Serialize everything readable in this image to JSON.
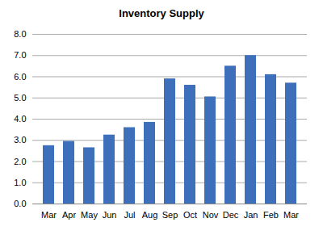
{
  "chart_data": {
    "type": "bar",
    "title": "Inventory Supply",
    "categories": [
      "Mar",
      "Apr",
      "May",
      "Jun",
      "Jul",
      "Aug",
      "Sep",
      "Oct",
      "Nov",
      "Dec",
      "Jan",
      "Feb",
      "Mar"
    ],
    "values": [
      2.75,
      2.95,
      2.65,
      3.25,
      3.6,
      3.85,
      5.9,
      5.6,
      5.05,
      6.5,
      7.0,
      6.1,
      5.7
    ],
    "color": "#3d6fba",
    "ylim": [
      0,
      8
    ],
    "yticks": [
      {
        "value": 0,
        "label": "0.0"
      },
      {
        "value": 1,
        "label": "1.0"
      },
      {
        "value": 2,
        "label": "2.0"
      },
      {
        "value": 3,
        "label": "3.0"
      },
      {
        "value": 4,
        "label": "4.0"
      },
      {
        "value": 5,
        "label": "5.0"
      },
      {
        "value": 6,
        "label": "6.0"
      },
      {
        "value": 7,
        "label": "7.0"
      },
      {
        "value": 8,
        "label": "8.0"
      }
    ],
    "grid": true
  }
}
